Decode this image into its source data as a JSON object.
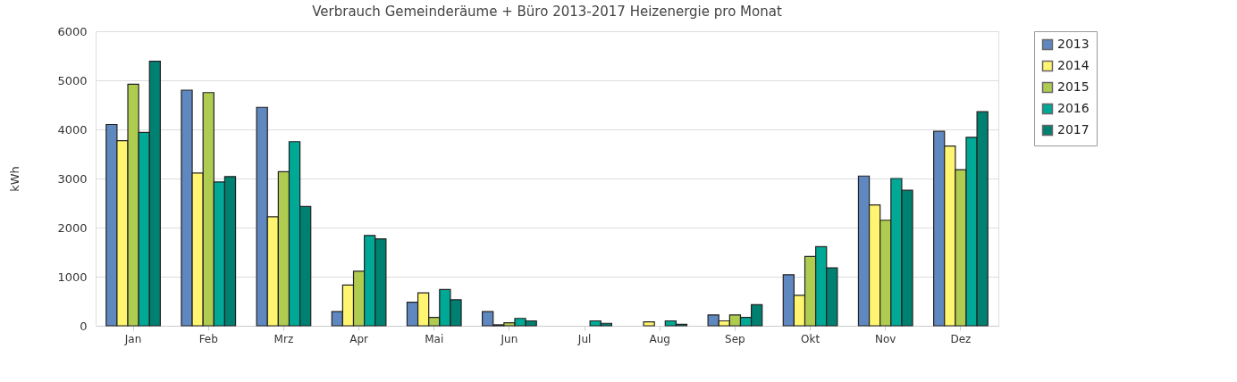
{
  "chart_data": {
    "type": "bar",
    "title": "Verbrauch Gemeinderäume + Büro 2013-2017 Heizenergie pro Monat",
    "ylabel": "kWh",
    "categories": [
      "Jan",
      "Feb",
      "Mrz",
      "Apr",
      "Mai",
      "Jun",
      "Jul",
      "Aug",
      "Sep",
      "Okt",
      "Nov",
      "Dez"
    ],
    "series": [
      {
        "name": "2013",
        "color": "#6088c0",
        "values": [
          4100,
          4800,
          4450,
          290,
          480,
          290,
          0,
          0,
          220,
          1040,
          3050,
          3960
        ]
      },
      {
        "name": "2014",
        "color": "#fff570",
        "values": [
          3770,
          3110,
          2220,
          830,
          670,
          20,
          0,
          80,
          100,
          620,
          2460,
          3660
        ]
      },
      {
        "name": "2015",
        "color": "#b0cc50",
        "values": [
          4920,
          4750,
          3140,
          1110,
          170,
          60,
          0,
          0,
          220,
          1410,
          2150,
          3180
        ]
      },
      {
        "name": "2016",
        "color": "#00a896",
        "values": [
          3940,
          2930,
          3750,
          1840,
          740,
          150,
          100,
          100,
          170,
          1610,
          3000,
          3840
        ]
      },
      {
        "name": "2017",
        "color": "#008070",
        "values": [
          5390,
          3040,
          2430,
          1770,
          530,
          100,
          50,
          30,
          430,
          1180,
          2760,
          4360
        ]
      }
    ],
    "ylim": [
      0,
      6000
    ],
    "yticks": [
      0,
      1000,
      2000,
      3000,
      4000,
      5000,
      6000
    ],
    "grid": "y",
    "legend": "top right"
  }
}
